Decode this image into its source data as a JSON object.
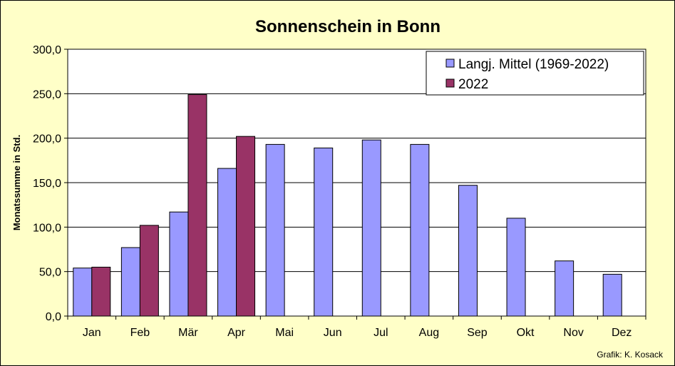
{
  "chart_data": {
    "type": "bar",
    "title": "Sonnenschein in Bonn",
    "xlabel": "",
    "ylabel": "Monatssumme in Std.",
    "ylim": [
      0,
      300
    ],
    "yticks": [
      "0,0",
      "50,0",
      "100,0",
      "150,0",
      "200,0",
      "250,0",
      "300,0"
    ],
    "categories": [
      "Jan",
      "Feb",
      "Mär",
      "Apr",
      "Mai",
      "Jun",
      "Jul",
      "Aug",
      "Sep",
      "Okt",
      "Nov",
      "Dez"
    ],
    "series": [
      {
        "name": "Langj. Mittel (1969-2022)",
        "color": "#9999ff",
        "values": [
          54,
          77,
          117,
          166,
          193,
          189,
          198,
          193,
          147,
          110,
          62,
          47
        ]
      },
      {
        "name": "2022",
        "color": "#993366",
        "values": [
          55,
          102,
          249,
          202,
          null,
          null,
          null,
          null,
          null,
          null,
          null,
          null
        ]
      }
    ],
    "grid": true,
    "legend_position": "top-right",
    "background": "#ffffc8",
    "plot_background": "#ffffff"
  },
  "credit": "Grafik:  K. Kosack"
}
